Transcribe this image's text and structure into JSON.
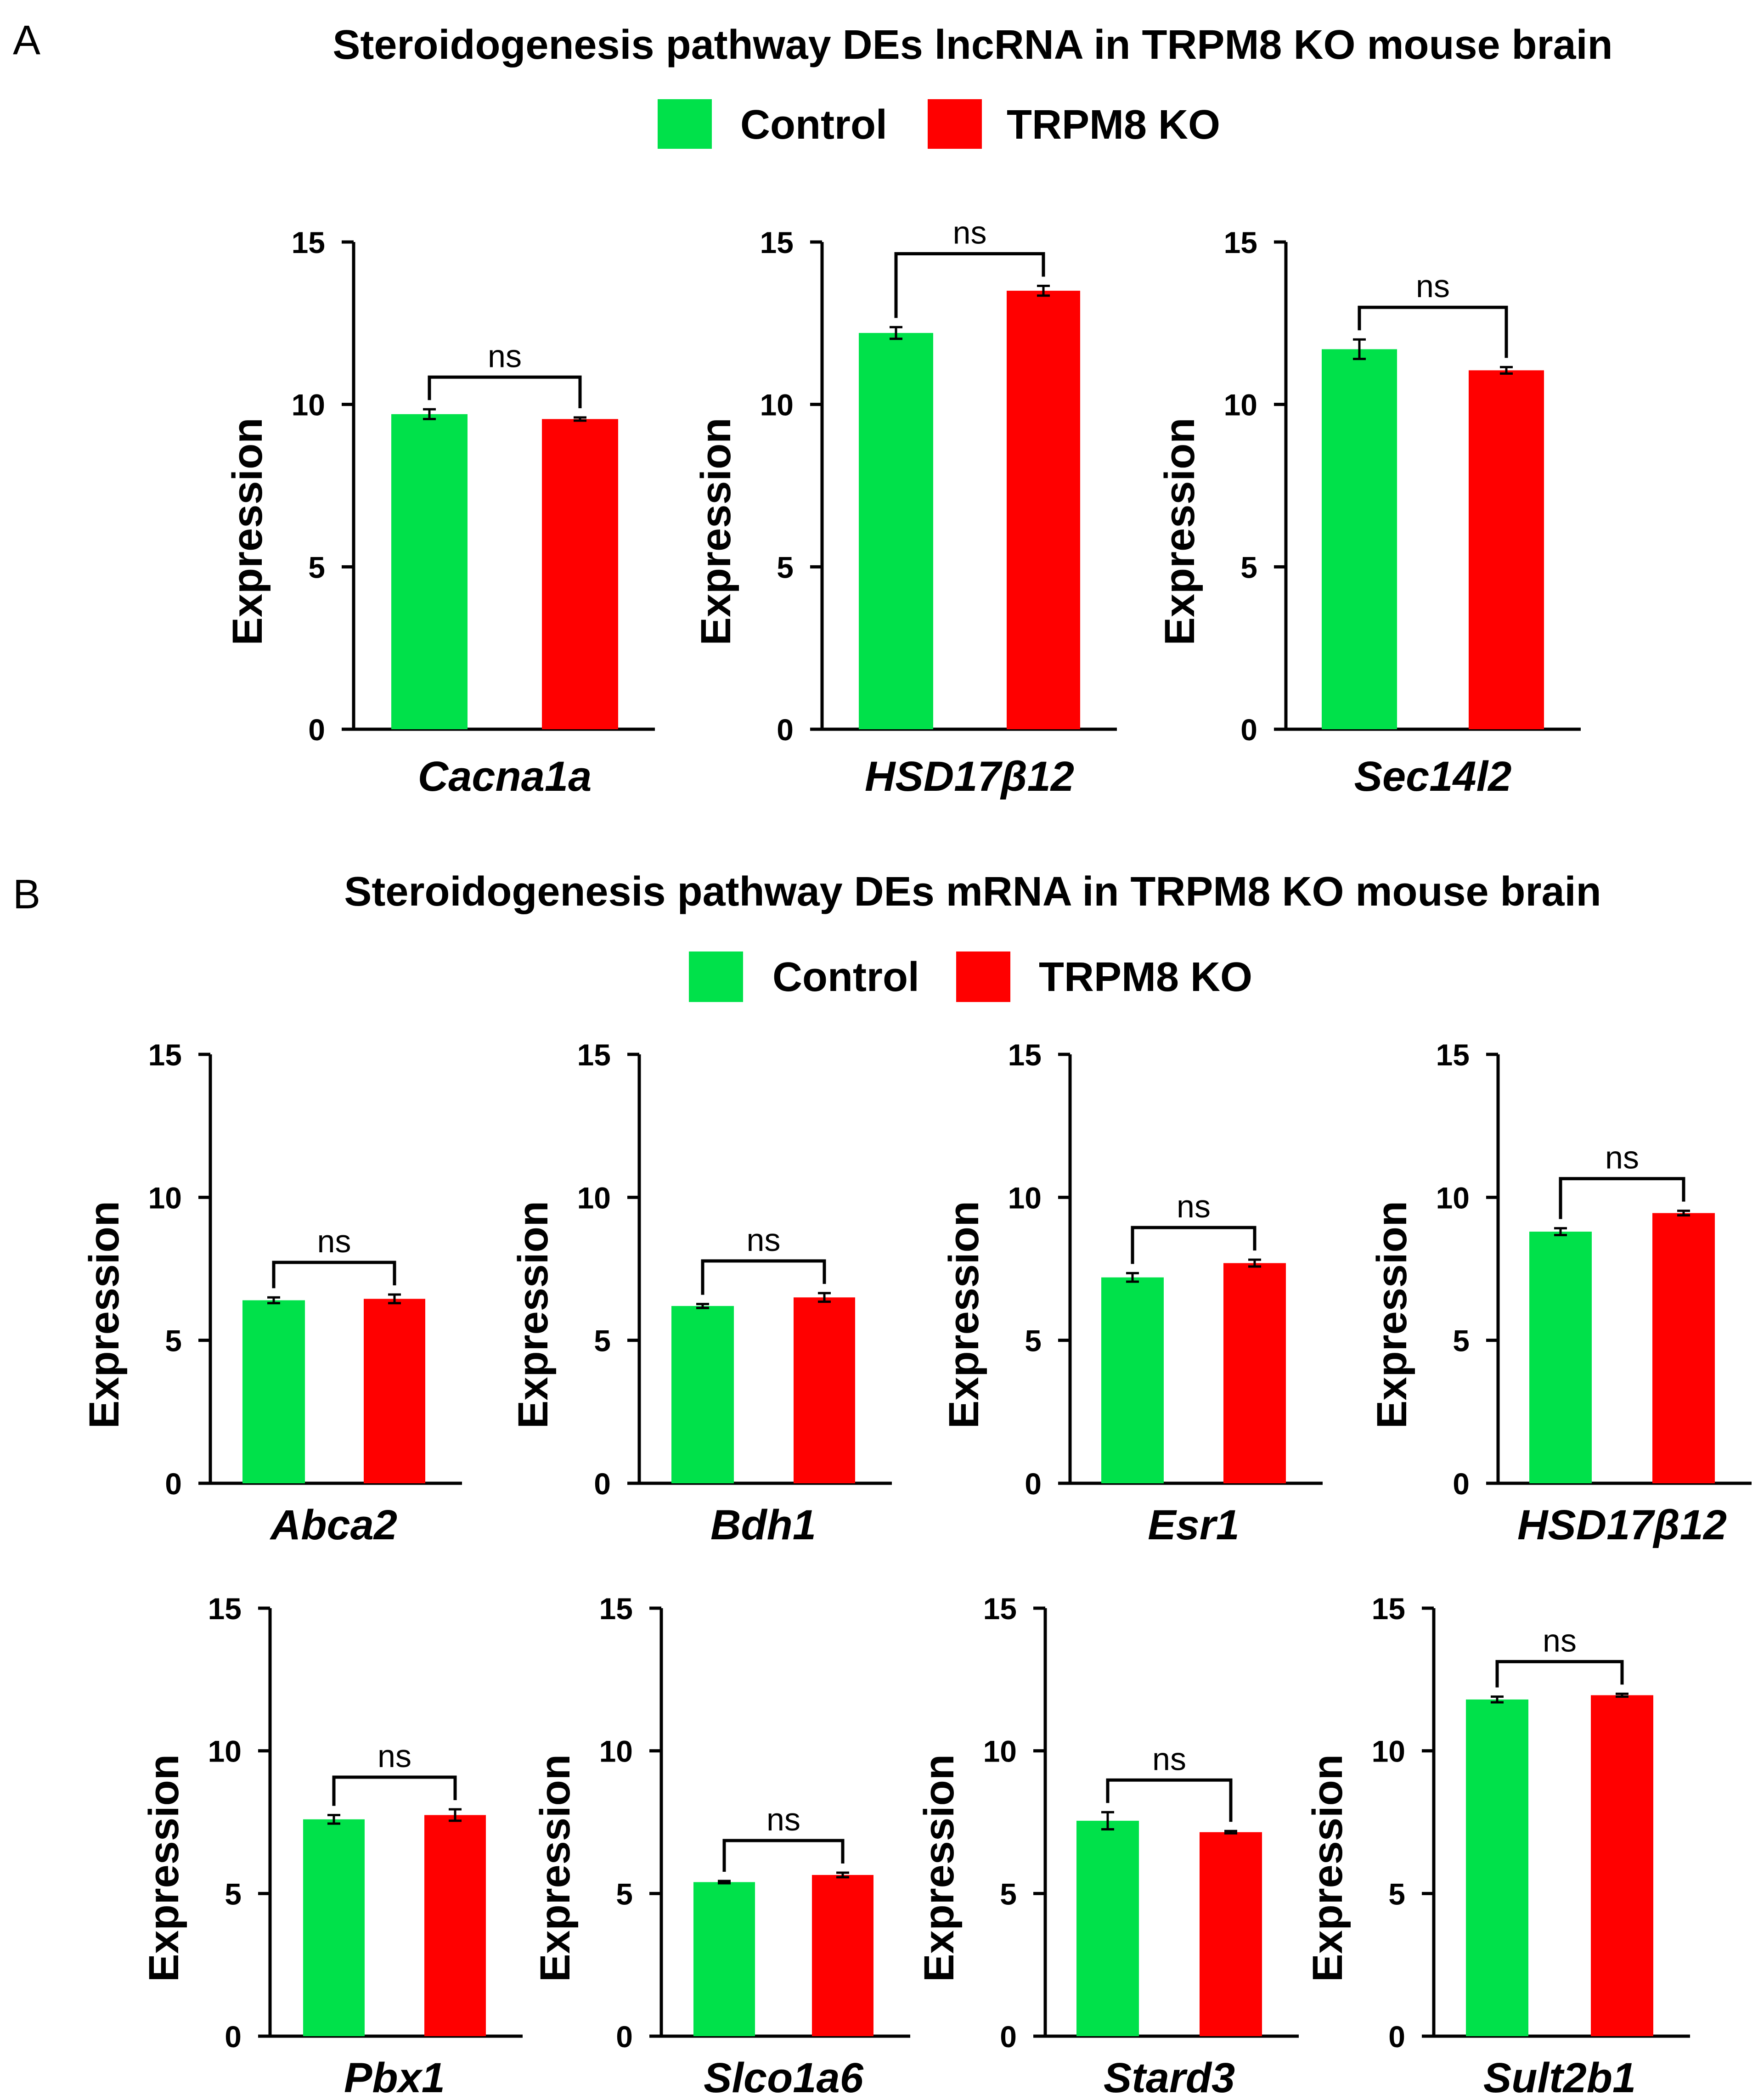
{
  "colors": {
    "control": "#00e14a",
    "ko": "#ff0000",
    "axis": "#000000"
  },
  "panels": [
    {
      "letter": "A",
      "title": "Steroidogenesis pathway DEs lncRNA in TRPM8 KO mouse brain",
      "legend": {
        "control": "Control",
        "ko": "TRPM8 KO"
      }
    },
    {
      "letter": "B",
      "title": "Steroidogenesis pathway DEs mRNA in TRPM8 KO mouse brain",
      "legend": {
        "control": "Control",
        "ko": "TRPM8 KO"
      }
    }
  ],
  "chart_data": [
    {
      "panel": "A",
      "type": "bar",
      "category": "Cacna1a",
      "series": [
        {
          "name": "Control",
          "value": 9.7,
          "error": 0.15
        },
        {
          "name": "TRPM8 KO",
          "value": 9.55,
          "error": 0.05
        }
      ],
      "ylabel": "Expression",
      "ylim": [
        0,
        15
      ],
      "yticks": [
        0,
        5,
        10,
        15
      ],
      "significance": "ns"
    },
    {
      "panel": "A",
      "type": "bar",
      "category": "HSD17β12",
      "series": [
        {
          "name": "Control",
          "value": 12.2,
          "error": 0.18
        },
        {
          "name": "TRPM8 KO",
          "value": 13.5,
          "error": 0.15
        }
      ],
      "ylabel": "Expression",
      "ylim": [
        0,
        15
      ],
      "yticks": [
        0,
        5,
        10,
        15
      ],
      "significance": "ns"
    },
    {
      "panel": "A",
      "type": "bar",
      "category": "Sec14l2",
      "series": [
        {
          "name": "Control",
          "value": 11.7,
          "error": 0.3
        },
        {
          "name": "TRPM8 KO",
          "value": 11.05,
          "error": 0.1
        }
      ],
      "ylabel": "Expression",
      "ylim": [
        0,
        15
      ],
      "yticks": [
        0,
        5,
        10,
        15
      ],
      "significance": "ns"
    },
    {
      "panel": "B",
      "type": "bar",
      "category": "Abca2",
      "series": [
        {
          "name": "Control",
          "value": 6.4,
          "error": 0.1
        },
        {
          "name": "TRPM8 KO",
          "value": 6.45,
          "error": 0.15
        }
      ],
      "ylabel": "Expression",
      "ylim": [
        0,
        15
      ],
      "yticks": [
        0,
        5,
        10,
        15
      ],
      "significance": "ns"
    },
    {
      "panel": "B",
      "type": "bar",
      "category": "Bdh1",
      "series": [
        {
          "name": "Control",
          "value": 6.2,
          "error": 0.07
        },
        {
          "name": "TRPM8 KO",
          "value": 6.5,
          "error": 0.15
        }
      ],
      "ylabel": "Expression",
      "ylim": [
        0,
        15
      ],
      "yticks": [
        0,
        5,
        10,
        15
      ],
      "significance": "ns"
    },
    {
      "panel": "B",
      "type": "bar",
      "category": "Esr1",
      "series": [
        {
          "name": "Control",
          "value": 7.2,
          "error": 0.15
        },
        {
          "name": "TRPM8 KO",
          "value": 7.7,
          "error": 0.12
        }
      ],
      "ylabel": "Expression",
      "ylim": [
        0,
        15
      ],
      "yticks": [
        0,
        5,
        10,
        15
      ],
      "significance": "ns"
    },
    {
      "panel": "B",
      "type": "bar",
      "category": "HSD17β12",
      "series": [
        {
          "name": "Control",
          "value": 8.8,
          "error": 0.12
        },
        {
          "name": "TRPM8 KO",
          "value": 9.45,
          "error": 0.08
        }
      ],
      "ylabel": "Expression",
      "ylim": [
        0,
        15
      ],
      "yticks": [
        0,
        5,
        10,
        15
      ],
      "significance": "ns"
    },
    {
      "panel": "B",
      "type": "bar",
      "category": "Pbx1",
      "series": [
        {
          "name": "Control",
          "value": 7.6,
          "error": 0.15
        },
        {
          "name": "TRPM8 KO",
          "value": 7.75,
          "error": 0.2
        }
      ],
      "ylabel": "Expression",
      "ylim": [
        0,
        15
      ],
      "yticks": [
        0,
        5,
        10,
        15
      ],
      "significance": "ns"
    },
    {
      "panel": "B",
      "type": "bar",
      "category": "Slco1a6",
      "series": [
        {
          "name": "Control",
          "value": 5.4,
          "error": 0.04
        },
        {
          "name": "TRPM8 KO",
          "value": 5.65,
          "error": 0.08
        }
      ],
      "ylabel": "Expression",
      "ylim": [
        0,
        15
      ],
      "yticks": [
        0,
        5,
        10,
        15
      ],
      "significance": "ns"
    },
    {
      "panel": "B",
      "type": "bar",
      "category": "Stard3",
      "series": [
        {
          "name": "Control",
          "value": 7.55,
          "error": 0.3
        },
        {
          "name": "TRPM8 KO",
          "value": 7.15,
          "error": 0.04
        }
      ],
      "ylabel": "Expression",
      "ylim": [
        0,
        15
      ],
      "yticks": [
        0,
        5,
        10,
        15
      ],
      "significance": "ns"
    },
    {
      "panel": "B",
      "type": "bar",
      "category": "Sult2b1",
      "series": [
        {
          "name": "Control",
          "value": 11.8,
          "error": 0.1
        },
        {
          "name": "TRPM8 KO",
          "value": 11.95,
          "error": 0.05
        }
      ],
      "ylabel": "Expression",
      "ylim": [
        0,
        15
      ],
      "yticks": [
        0,
        5,
        10,
        15
      ],
      "significance": "ns"
    }
  ]
}
